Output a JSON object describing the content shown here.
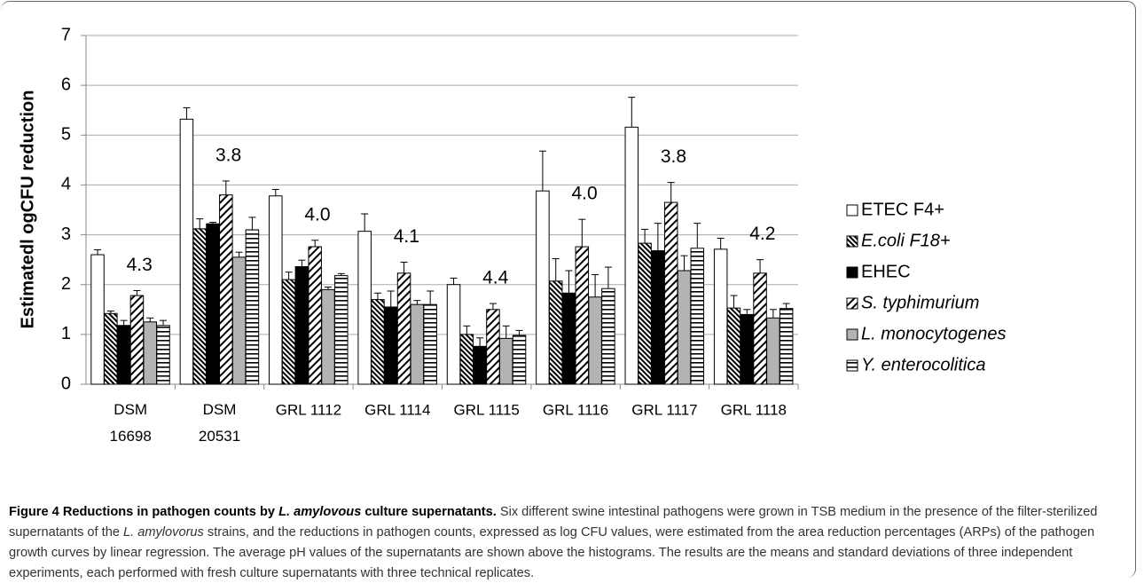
{
  "chart_data": {
    "type": "bar",
    "y_label": "Estimatedl ogCFU reduction",
    "categories": [
      "DSM\n16698",
      "DSM\n20531",
      "GRL 1112",
      "GRL 1114",
      "GRL 1115",
      "GRL 1116",
      "GRL 1117",
      "GRL 1118"
    ],
    "annotations": [
      "4.3",
      "3.8",
      "4.0",
      "4.1",
      "4.4",
      "4.0",
      "3.8",
      "4.2"
    ],
    "series": [
      {
        "name": "ETEC F4+",
        "color": "#ffffff",
        "pattern": "none",
        "italic": false,
        "values": [
          2.6,
          5.32,
          3.78,
          3.07,
          2.0,
          3.88,
          5.16,
          2.71
        ],
        "errors": [
          0.1,
          0.23,
          0.13,
          0.35,
          0.13,
          0.8,
          0.6,
          0.22
        ]
      },
      {
        "name": "E.coli F18+",
        "color": "#ffffff",
        "pattern": "dense",
        "italic": true,
        "values": [
          1.42,
          3.12,
          2.1,
          1.7,
          1.0,
          2.07,
          2.83,
          1.53
        ],
        "errors": [
          0.05,
          0.2,
          0.15,
          0.13,
          0.17,
          0.45,
          0.28,
          0.25
        ]
      },
      {
        "name": "EHEC",
        "color": "#000000",
        "pattern": "none",
        "italic": false,
        "values": [
          1.18,
          3.22,
          2.36,
          1.55,
          0.76,
          1.83,
          2.68,
          1.4
        ],
        "errors": [
          0.1,
          0.03,
          0.13,
          0.32,
          0.17,
          0.45,
          0.55,
          0.1
        ]
      },
      {
        "name": "S. typhimurium",
        "color": "#ffffff",
        "pattern": "hatch",
        "italic": true,
        "values": [
          1.78,
          3.8,
          2.76,
          2.23,
          1.5,
          2.76,
          3.65,
          2.23
        ],
        "errors": [
          0.1,
          0.28,
          0.13,
          0.22,
          0.12,
          0.55,
          0.4,
          0.27
        ]
      },
      {
        "name": "L. monocytogenes",
        "color": "#b3b3b3",
        "pattern": "none",
        "italic": true,
        "values": [
          1.25,
          2.55,
          1.9,
          1.6,
          0.92,
          1.75,
          2.28,
          1.33
        ],
        "errors": [
          0.08,
          0.1,
          0.05,
          0.08,
          0.25,
          0.45,
          0.3,
          0.17
        ]
      },
      {
        "name": "Y. enterocolitica",
        "color": "#ffffff",
        "pattern": "horiz",
        "italic": true,
        "values": [
          1.18,
          3.1,
          2.18,
          1.6,
          0.98,
          1.92,
          2.73,
          1.52
        ],
        "errors": [
          0.1,
          0.25,
          0.04,
          0.27,
          0.1,
          0.43,
          0.5,
          0.1
        ]
      }
    ],
    "ylim": [
      0,
      7
    ],
    "yticks": [
      0,
      1,
      2,
      3,
      4,
      5,
      6,
      7
    ],
    "grid": true,
    "legend": "right"
  },
  "caption": [
    {
      "text": "Figure 4 Reductions in pathogen counts by ",
      "style": "bold"
    },
    {
      "text": "L. amylovous",
      "style": "bold italic"
    },
    {
      "text": " culture supernatants.",
      "style": "bold"
    },
    {
      "text": " Six different swine intestinal pathogens were grown in TSB medium in the presence of the filter-sterilized supernatants of the ",
      "style": "normal"
    },
    {
      "text": "L. amylovorus",
      "style": "italic"
    },
    {
      "text": " strains, and the reductions in pathogen counts, expressed as log CFU values, were estimated from the area reduction percentages (ARPs) of the pathogen growth curves by linear regression. The average pH values of the supernatants are shown above the histograms. The results are the means and standard deviations of three independent experiments, each performed with fresh culture supernatants with three technical replicates.",
      "style": "normal"
    }
  ]
}
